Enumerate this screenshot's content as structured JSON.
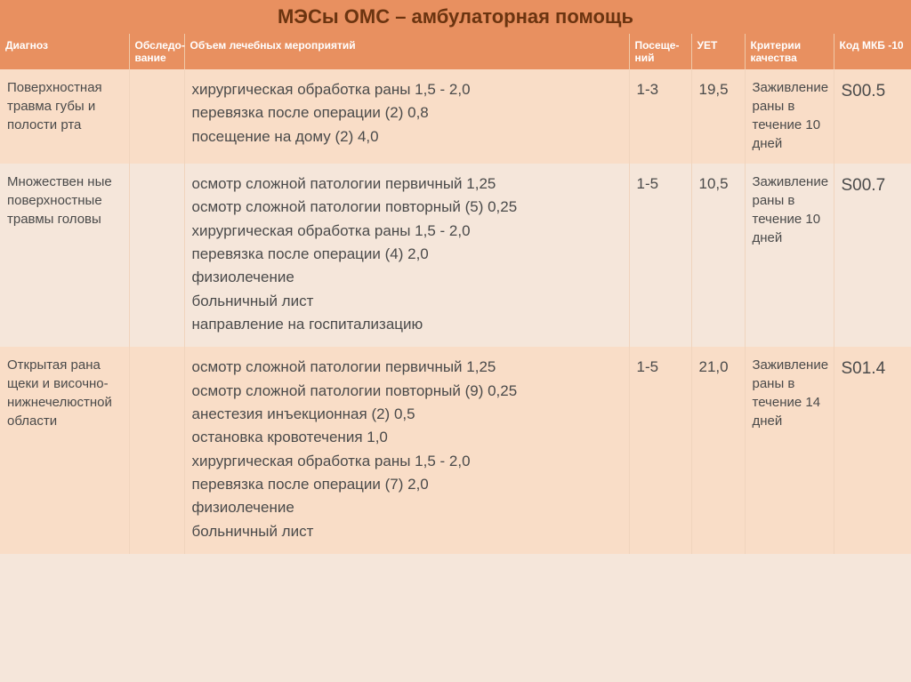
{
  "title": "МЭСы ОМС – амбулаторная помощь",
  "header": {
    "diag": "Диагноз",
    "obsl": "Обследо-вание",
    "vol": "Объем лечебных мероприятий",
    "vis": "Посеще-ний",
    "uet": "УЕТ",
    "crit": "Критерии качества",
    "mkb": "Код МКБ -10"
  },
  "rows": [
    {
      "diag": "Поверхностная травма губы и полости рта",
      "obsl": "",
      "vol": "хирургическая обработка раны  1,5 -  2,0\nперевязка после операции (2) 0,8\nпосещение на дому (2) 4,0",
      "vis": "1-3",
      "uet": "19,5",
      "crit": "Заживление раны в течение 10 дней",
      "mkb": "S00.5"
    },
    {
      "diag": "Множествен ные поверхностные травмы головы",
      "obsl": "",
      "vol": "осмотр сложной патологии первичный  1,25\nосмотр сложной патологии  повторный  (5) 0,25\nхирургическая  обработка раны  1,5 -  2,0\nперевязка после операции (4) 2,0\nфизиолечение\nбольничный лист\nнаправление на госпитализацию",
      "vis": "1-5",
      "uet": "10,5",
      "crit": "Заживление раны в течение 10 дней",
      "mkb": "S00.7"
    },
    {
      "diag": "Открытая рана щеки и височно-нижнечелюстной области",
      "obsl": "",
      "vol": "осмотр сложной патологии  первичный  1,25\nосмотр сложной  патологии повторный  (9) 0,25\nанестезия инъекционная  (2) 0,5\nостановка кровотечения 1,0\nхирургическая обработка раны  1,5 - 2,0\nперевязка после операции (7) 2,0\nфизиолечение\nбольничный лист",
      "vis": "1-5",
      "uet": "21,0",
      "crit": "Заживление раны в течение 14 дней",
      "mkb": "S01.4"
    }
  ],
  "styling": {
    "header_bg": "#e89060",
    "header_text": "#ffffff",
    "title_text": "#6b3410",
    "row_alt_bg": "#f9ddc7",
    "row_base_bg": "#f5e6da",
    "body_text": "#4a4a4a",
    "border_color": "#f0d4bd",
    "title_fontsize": 22,
    "header_fontsize": 12,
    "cell_fontsize": 17,
    "diag_fontsize": 15
  }
}
